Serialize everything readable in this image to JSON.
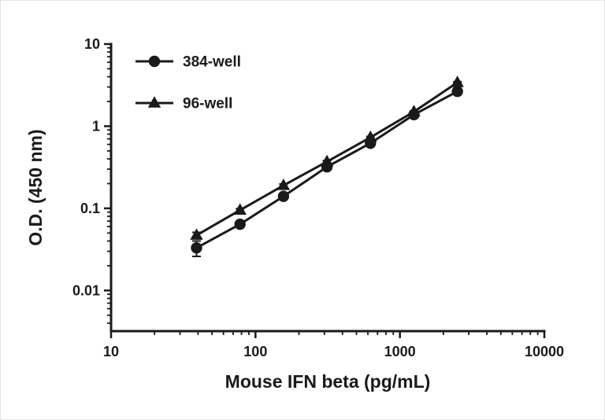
{
  "chart_data": {
    "type": "line",
    "title": "",
    "xlabel": "Mouse  IFN beta (pg/mL)",
    "ylabel": "O.D. (450 nm)",
    "x_scale": "log",
    "y_scale": "log",
    "xlim": [
      10,
      10000
    ],
    "ylim": [
      0.0032,
      10
    ],
    "x_ticks": [
      10,
      100,
      1000,
      10000
    ],
    "y_ticks": [
      10,
      1,
      0.1,
      0.01
    ],
    "grid": false,
    "legend_position": "top-left-inside",
    "color": "#1a1a1a",
    "series": [
      {
        "name": "384-well",
        "marker": "circle",
        "x": [
          39.06,
          78.13,
          156.25,
          312.5,
          625,
          1250,
          2500
        ],
        "y": [
          0.033,
          0.064,
          0.14,
          0.32,
          0.62,
          1.38,
          2.65
        ],
        "sd": [
          0.007,
          0.003,
          0.006,
          0.01,
          0.015,
          0.03,
          0.06
        ]
      },
      {
        "name": "96-well",
        "marker": "triangle",
        "x": [
          39.06,
          78.13,
          156.25,
          312.5,
          625,
          1250,
          2500
        ],
        "y": [
          0.047,
          0.095,
          0.19,
          0.37,
          0.73,
          1.5,
          3.4
        ],
        "sd": [
          0.004,
          0.004,
          0.008,
          0.012,
          0.02,
          0.04,
          0.08
        ]
      }
    ]
  }
}
